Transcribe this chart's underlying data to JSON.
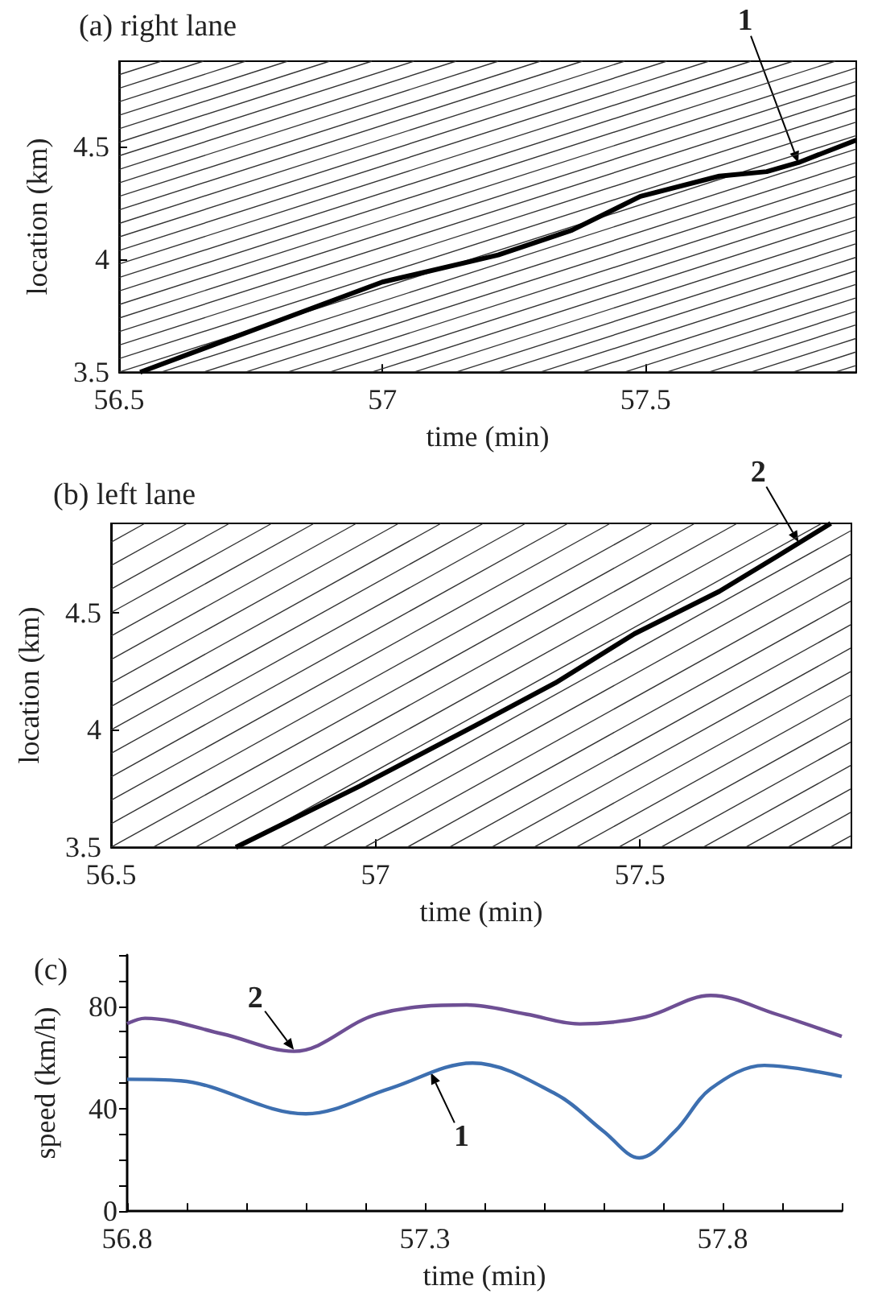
{
  "chart_data": [
    {
      "type": "line",
      "title": "(a) right lane",
      "xlabel": "time (min)",
      "ylabel": "location (km)",
      "xlim": [
        56.5,
        57.9
      ],
      "ylim": [
        3.5,
        4.88
      ],
      "xticks": [
        56.5,
        57,
        57.5
      ],
      "yticks": [
        3.5,
        4,
        4.5
      ],
      "marker": "none",
      "annotations": [
        {
          "text": "1",
          "x": 57.79,
          "y": 4.43
        }
      ],
      "series": [
        {
          "color": "#000000",
          "x": [
            56.54,
            56.77,
            57.0,
            57.22,
            57.36,
            57.49,
            57.64,
            57.73,
            57.79,
            57.9
          ],
          "values": [
            3.5,
            3.7,
            3.9,
            4.02,
            4.13,
            4.28,
            4.37,
            4.39,
            4.43,
            4.53
          ]
        },
        {
          "color": "#333333",
          "x": [
            56.5,
            57.9
          ],
          "values": [
            3.56,
            4.61
          ]
        },
        {
          "color": "#333333",
          "x": [
            56.5,
            57.9
          ],
          "values": [
            3.62,
            4.67
          ]
        },
        {
          "color": "#333333",
          "x": [
            56.5,
            57.9
          ],
          "values": [
            3.68,
            4.73
          ]
        },
        {
          "color": "#333333",
          "x": [
            56.5,
            57.9
          ],
          "values": [
            3.74,
            4.79
          ]
        },
        {
          "color": "#333333",
          "x": [
            56.5,
            57.9
          ],
          "values": [
            3.8,
            4.85
          ]
        },
        {
          "color": "#333333",
          "x": [
            56.5,
            57.86
          ],
          "values": [
            3.86,
            4.88
          ]
        },
        {
          "color": "#333333",
          "x": [
            56.5,
            57.78
          ],
          "values": [
            3.92,
            4.88
          ]
        },
        {
          "color": "#333333",
          "x": [
            56.5,
            57.7
          ],
          "values": [
            3.98,
            4.88
          ]
        },
        {
          "color": "#333333",
          "x": [
            56.5,
            57.62
          ],
          "values": [
            4.04,
            4.88
          ]
        },
        {
          "color": "#333333",
          "x": [
            56.5,
            57.54
          ],
          "values": [
            4.1,
            4.88
          ]
        },
        {
          "color": "#333333",
          "x": [
            56.5,
            57.46
          ],
          "values": [
            4.16,
            4.88
          ]
        },
        {
          "color": "#333333",
          "x": [
            56.5,
            57.38
          ],
          "values": [
            4.22,
            4.88
          ]
        },
        {
          "color": "#333333",
          "x": [
            56.5,
            57.3
          ],
          "values": [
            4.28,
            4.88
          ]
        },
        {
          "color": "#333333",
          "x": [
            56.5,
            57.22
          ],
          "values": [
            4.34,
            4.88
          ]
        },
        {
          "color": "#333333",
          "x": [
            56.5,
            57.14
          ],
          "values": [
            4.4,
            4.88
          ]
        },
        {
          "color": "#333333",
          "x": [
            56.5,
            57.06
          ],
          "values": [
            4.46,
            4.88
          ]
        },
        {
          "color": "#333333",
          "x": [
            56.5,
            56.98
          ],
          "values": [
            4.52,
            4.88
          ]
        },
        {
          "color": "#333333",
          "x": [
            56.5,
            56.9
          ],
          "values": [
            4.58,
            4.88
          ]
        },
        {
          "color": "#333333",
          "x": [
            56.5,
            56.82
          ],
          "values": [
            4.64,
            4.88
          ]
        },
        {
          "color": "#333333",
          "x": [
            56.5,
            56.74
          ],
          "values": [
            4.7,
            4.88
          ]
        },
        {
          "color": "#333333",
          "x": [
            56.5,
            56.66
          ],
          "values": [
            4.76,
            4.88
          ]
        },
        {
          "color": "#333333",
          "x": [
            56.5,
            56.58
          ],
          "values": [
            4.82,
            4.88
          ]
        },
        {
          "color": "#333333",
          "x": [
            56.5,
            57.9
          ],
          "values": [
            3.5,
            4.55
          ]
        },
        {
          "color": "#333333",
          "x": [
            56.58,
            57.9
          ],
          "values": [
            3.5,
            4.49
          ]
        },
        {
          "color": "#333333",
          "x": [
            56.66,
            57.9
          ],
          "values": [
            3.5,
            4.43
          ]
        },
        {
          "color": "#333333",
          "x": [
            56.74,
            57.9
          ],
          "values": [
            3.5,
            4.37
          ]
        },
        {
          "color": "#333333",
          "x": [
            56.82,
            57.9
          ],
          "values": [
            3.5,
            4.31
          ]
        },
        {
          "color": "#333333",
          "x": [
            56.9,
            57.9
          ],
          "values": [
            3.5,
            4.25
          ]
        },
        {
          "color": "#333333",
          "x": [
            56.98,
            57.9
          ],
          "values": [
            3.5,
            4.19
          ]
        },
        {
          "color": "#333333",
          "x": [
            57.06,
            57.9
          ],
          "values": [
            3.5,
            4.13
          ]
        },
        {
          "color": "#333333",
          "x": [
            57.14,
            57.9
          ],
          "values": [
            3.5,
            4.07
          ]
        },
        {
          "color": "#333333",
          "x": [
            57.22,
            57.9
          ],
          "values": [
            3.5,
            4.01
          ]
        },
        {
          "color": "#333333",
          "x": [
            57.3,
            57.9
          ],
          "values": [
            3.5,
            3.95
          ]
        },
        {
          "color": "#333333",
          "x": [
            57.38,
            57.9
          ],
          "values": [
            3.5,
            3.89
          ]
        },
        {
          "color": "#333333",
          "x": [
            57.46,
            57.9
          ],
          "values": [
            3.5,
            3.83
          ]
        },
        {
          "color": "#333333",
          "x": [
            57.54,
            57.9
          ],
          "values": [
            3.5,
            3.77
          ]
        },
        {
          "color": "#333333",
          "x": [
            57.62,
            57.9
          ],
          "values": [
            3.5,
            3.71
          ]
        },
        {
          "color": "#333333",
          "x": [
            57.7,
            57.9
          ],
          "values": [
            3.5,
            3.65
          ]
        },
        {
          "color": "#333333",
          "x": [
            57.78,
            57.9
          ],
          "values": [
            3.5,
            3.59
          ]
        },
        {
          "color": "#333333",
          "x": [
            57.86,
            57.9
          ],
          "values": [
            3.5,
            3.53
          ]
        }
      ]
    },
    {
      "type": "line",
      "title": "(b) left lane",
      "xlabel": "time (min)",
      "ylabel": "location (km)",
      "xlim": [
        56.5,
        57.9
      ],
      "ylim": [
        3.5,
        4.88
      ],
      "xticks": [
        56.5,
        57,
        57.5
      ],
      "yticks": [
        3.5,
        4,
        4.5
      ],
      "marker": "none",
      "annotations": [
        {
          "text": "2",
          "x": 57.8,
          "y": 4.8
        }
      ],
      "series": [
        {
          "color": "#000000",
          "x": [
            56.736,
            56.97,
            57.19,
            57.34,
            57.49,
            57.65,
            57.76,
            57.861
          ],
          "values": [
            3.5,
            3.76,
            4.02,
            4.2,
            4.41,
            4.59,
            4.74,
            4.88
          ]
        },
        {
          "color": "#333333",
          "x": [
            56.5,
            57.524
          ],
          "values": [
            3.6,
            4.88
          ]
        },
        {
          "color": "#333333",
          "x": [
            56.5,
            57.444
          ],
          "values": [
            3.7,
            4.88
          ]
        },
        {
          "color": "#333333",
          "x": [
            56.5,
            57.364
          ],
          "values": [
            3.8,
            4.88
          ]
        },
        {
          "color": "#333333",
          "x": [
            56.5,
            57.284
          ],
          "values": [
            3.9,
            4.88
          ]
        },
        {
          "color": "#333333",
          "x": [
            56.5,
            57.204
          ],
          "values": [
            4.0,
            4.88
          ]
        },
        {
          "color": "#333333",
          "x": [
            56.5,
            57.124
          ],
          "values": [
            4.1,
            4.88
          ]
        },
        {
          "color": "#333333",
          "x": [
            56.5,
            57.044
          ],
          "values": [
            4.2,
            4.88
          ]
        },
        {
          "color": "#333333",
          "x": [
            56.5,
            56.964
          ],
          "values": [
            4.3,
            4.88
          ]
        },
        {
          "color": "#333333",
          "x": [
            56.5,
            56.884
          ],
          "values": [
            4.4,
            4.88
          ]
        },
        {
          "color": "#333333",
          "x": [
            56.5,
            56.804
          ],
          "values": [
            4.5,
            4.88
          ]
        },
        {
          "color": "#333333",
          "x": [
            56.5,
            56.724
          ],
          "values": [
            4.6,
            4.88
          ]
        },
        {
          "color": "#333333",
          "x": [
            56.5,
            56.644
          ],
          "values": [
            4.7,
            4.88
          ]
        },
        {
          "color": "#333333",
          "x": [
            56.5,
            56.564
          ],
          "values": [
            4.8,
            4.88
          ]
        },
        {
          "color": "#333333",
          "x": [
            56.5,
            57.604
          ],
          "values": [
            3.5,
            4.88
          ]
        },
        {
          "color": "#333333",
          "x": [
            56.58,
            57.684
          ],
          "values": [
            3.5,
            4.88
          ]
        },
        {
          "color": "#333333",
          "x": [
            56.66,
            57.764
          ],
          "values": [
            3.5,
            4.88
          ]
        },
        {
          "color": "#333333",
          "x": [
            56.74,
            57.844
          ],
          "values": [
            3.5,
            4.88
          ]
        },
        {
          "color": "#333333",
          "x": [
            56.82,
            57.9
          ],
          "values": [
            3.5,
            4.85
          ]
        },
        {
          "color": "#333333",
          "x": [
            56.9,
            57.9
          ],
          "values": [
            3.5,
            4.75
          ]
        },
        {
          "color": "#333333",
          "x": [
            56.98,
            57.9
          ],
          "values": [
            3.5,
            4.65
          ]
        },
        {
          "color": "#333333",
          "x": [
            57.06,
            57.9
          ],
          "values": [
            3.5,
            4.55
          ]
        },
        {
          "color": "#333333",
          "x": [
            57.14,
            57.9
          ],
          "values": [
            3.5,
            4.45
          ]
        },
        {
          "color": "#333333",
          "x": [
            57.22,
            57.9
          ],
          "values": [
            3.5,
            4.35
          ]
        },
        {
          "color": "#333333",
          "x": [
            57.3,
            57.9
          ],
          "values": [
            3.5,
            4.25
          ]
        },
        {
          "color": "#333333",
          "x": [
            57.38,
            57.9
          ],
          "values": [
            3.5,
            4.15
          ]
        },
        {
          "color": "#333333",
          "x": [
            57.46,
            57.9
          ],
          "values": [
            3.5,
            4.05
          ]
        },
        {
          "color": "#333333",
          "x": [
            57.54,
            57.9
          ],
          "values": [
            3.5,
            3.95
          ]
        },
        {
          "color": "#333333",
          "x": [
            57.62,
            57.9
          ],
          "values": [
            3.5,
            3.85
          ]
        },
        {
          "color": "#333333",
          "x": [
            57.7,
            57.9
          ],
          "values": [
            3.5,
            3.75
          ]
        },
        {
          "color": "#333333",
          "x": [
            57.78,
            57.9
          ],
          "values": [
            3.5,
            3.65
          ]
        },
        {
          "color": "#333333",
          "x": [
            57.86,
            57.9
          ],
          "values": [
            3.5,
            3.55
          ]
        }
      ]
    },
    {
      "type": "line",
      "title": "(c)",
      "xlabel": "time (min)",
      "ylabel": "speed (km/h)",
      "xlim": [
        56.8,
        58.0
      ],
      "ylim": [
        0,
        100
      ],
      "xticks": [
        56.8,
        {
          "value": 56.9,
          "label": null
        },
        {
          "value": 57.0,
          "label": null
        },
        {
          "value": 57.1,
          "label": null
        },
        {
          "value": 57.2,
          "label": null
        },
        57.3,
        {
          "value": 57.4,
          "label": null
        },
        {
          "value": 57.5,
          "label": null
        },
        {
          "value": 57.6,
          "label": null
        },
        {
          "value": 57.7,
          "label": null
        },
        57.8,
        {
          "value": 57.9,
          "label": null
        },
        {
          "value": 58.0,
          "label": null
        }
      ],
      "yticks": [
        0,
        {
          "value": 10,
          "label": null
        },
        {
          "value": 20,
          "label": null
        },
        {
          "value": 30,
          "label": null
        },
        40,
        {
          "value": 50,
          "label": null
        },
        {
          "value": 60,
          "label": null
        },
        {
          "value": 70,
          "label": null
        },
        80,
        {
          "value": 90,
          "label": null
        },
        {
          "value": 100,
          "label": null
        }
      ],
      "marker": "none",
      "annotations": [
        {
          "text": "2",
          "x": 57.08,
          "y": 63
        },
        {
          "text": "1",
          "x": 57.31,
          "y": 54
        }
      ],
      "series": [
        {
          "color": "#6e4f94",
          "x": [
            56.8,
            56.83,
            56.96,
            57.08,
            57.22,
            57.37,
            57.47,
            57.56,
            57.67,
            57.78,
            57.89,
            58.0
          ],
          "values": [
            73.2,
            75.3,
            69.2,
            62.4,
            76.9,
            80.5,
            76.9,
            73.1,
            75.8,
            84.2,
            76.9,
            68.2
          ]
        },
        {
          "color": "#3d6fb0",
          "x": [
            56.8,
            56.89,
            57.1,
            57.24,
            57.38,
            57.52,
            57.6,
            57.66,
            57.72,
            57.78,
            57.87,
            58.0
          ],
          "values": [
            51.5,
            50.9,
            38.0,
            47.8,
            57.8,
            45.7,
            31.2,
            20.8,
            31.2,
            47.8,
            56.9,
            52.6
          ]
        }
      ]
    }
  ]
}
